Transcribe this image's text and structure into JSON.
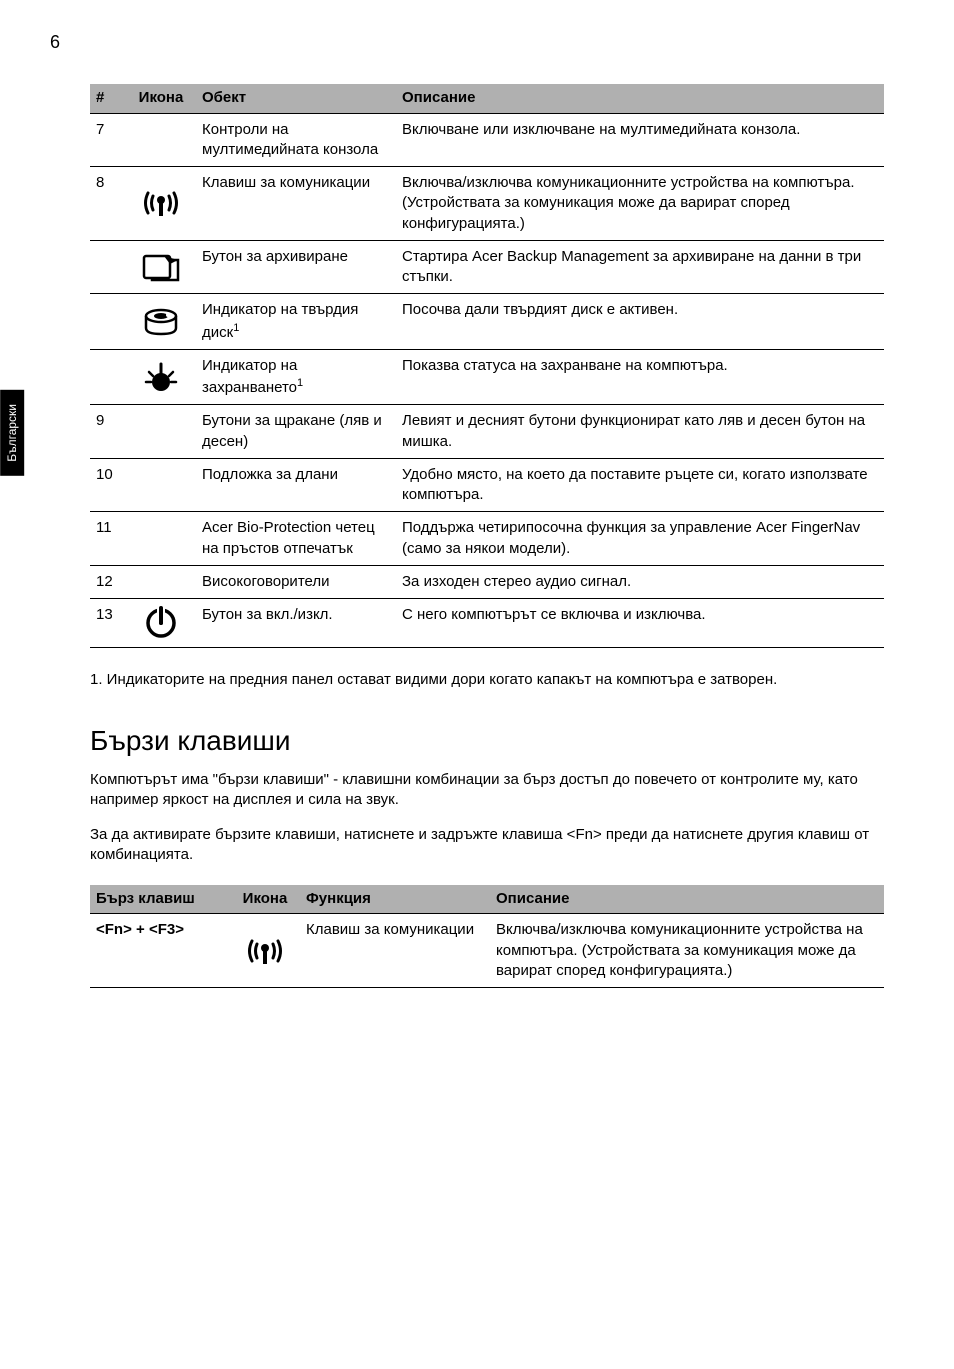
{
  "page_number": "6",
  "side_tab": "Български",
  "table1": {
    "headers": {
      "num": "#",
      "icon": "Икона",
      "obj": "Обект",
      "desc": "Описание"
    },
    "rows": [
      {
        "num": "7",
        "icon": null,
        "obj": "Контроли на мултимедийната конзола",
        "desc": "Включване или изключване на мултимедийната конзола.",
        "rule": true
      },
      {
        "num": "8",
        "icon": "comm",
        "obj": "Клавиш за комуникации",
        "desc": "Включва/изключва комуникационните устройства на компютъра. (Устройствата за комуникация може да варират според конфигурацията.)",
        "rule": true
      },
      {
        "num": "",
        "icon": "backup",
        "obj": "Бутон за архивиране",
        "desc": "Стартира Acer Backup Management за архивиране на данни в три стъпки.",
        "rule": true
      },
      {
        "num": "",
        "icon": "hdd",
        "obj_html": "Индикатор на твърдия диск<sup>1</sup>",
        "desc": "Посочва дали твърдият диск е активен.",
        "rule": true
      },
      {
        "num": "",
        "icon": "power",
        "obj_html": "Индикатор на захранването<sup>1</sup>",
        "desc": "Показва статуса на захранване на компютъра.",
        "rule": true
      },
      {
        "num": "9",
        "icon": null,
        "obj": "Бутони за щракане (ляв и десен)",
        "desc": "Левият и десният бутони функционират като ляв и десен бутон на мишка.",
        "rule": true
      },
      {
        "num": "10",
        "icon": null,
        "obj": "Подложка за длани",
        "desc": "Удобно място, на което да поставите ръцете си, когато използвате компютъра.",
        "rule": true
      },
      {
        "num": "11",
        "icon": null,
        "obj": "Acer Bio-Protection четец на пръстов отпечатък",
        "desc": "Поддържа четирипосочна функция за управление Acer FingerNav (само за някои модели).",
        "rule": true
      },
      {
        "num": "12",
        "icon": null,
        "obj": "Високоговорители",
        "desc": "За изходен стерео аудио сигнал.",
        "rule": true
      },
      {
        "num": "13",
        "icon": "pwrbtn",
        "obj": "Бутон за вкл./изкл.",
        "desc": "С него компютърът се включва и изключва.",
        "rule": true,
        "last": true
      }
    ]
  },
  "footnote": "1. Индикаторите на предния панел остават видими дори когато капакът на компютъра е затворен.",
  "section_title": "Бързи клавиши",
  "para1": "Компютърът има \"бързи клавиши\" - клавишни комбинации за бърз достъп до повечето от контролите му, като например яркост на дисплея и сила на звук.",
  "para2": "За да активирате бързите клавиши, натиснете и задръжте клавиша <Fn> преди да натиснете другия клавиш от комбинацията.",
  "table2": {
    "headers": {
      "hot": "Бърз клавиш",
      "icon": "Икона",
      "func": "Функция",
      "desc": "Описание"
    },
    "rows": [
      {
        "hot": "<Fn> + <F3>",
        "icon": "comm",
        "func": "Клавиш за комуникации",
        "desc": "Включва/изключва комуникационните устройства на компютъра. (Устройствата за комуникация може да варират според конфигурацията.)",
        "last": true
      }
    ]
  },
  "icons": {
    "comm": "<svg class='icon-svg' width='40' height='34' viewBox='0 0 40 34'><g fill='none' stroke='#000' stroke-width='3' stroke-linecap='round'><path d='M7 7 Q2 17 7 27'/><path d='M12 10 Q9 17 12 24'/><path d='M33 7 Q38 17 33 27'/><path d='M28 10 Q31 17 28 24'/></g><circle cx='20' cy='14' r='4' fill='#000'/><rect x='18' y='16' width='4' height='14' fill='#000'/></svg>",
    "backup": "<svg class='icon-svg' width='42' height='34' viewBox='0 0 42 34'><g fill='none' stroke='#000' stroke-width='2.5'><rect x='4' y='6' width='26' height='22' rx='2'/><path d='M30 10 L38 10 L38 30 L12 30 L12 28'/><path d='M24 6 L30 14 L38 10' fill='#000' stroke='none'/></g></svg>",
    "hdd": "<svg class='icon-svg' width='38' height='32' viewBox='0 0 38 32'><ellipse cx='19' cy='10' rx='15' ry='6' fill='none' stroke='#000' stroke-width='2.5'/><path d='M4 10 L4 22 Q4 28 19 28 Q34 28 34 22 L34 10' fill='none' stroke='#000' stroke-width='2.5'/><ellipse cx='19' cy='10' rx='7' ry='3' fill='#000'/><circle cx='26' cy='9' r='2' fill='#fff'/></svg>",
    "power": "<svg class='icon-svg' width='36' height='34' viewBox='0 0 36 34'><circle cx='18' cy='22' r='9' fill='#000'/><path d='M18 4 L18 14' stroke='#000' stroke-width='3' stroke-linecap='round'/><path d='M6 12 L10 16' stroke='#000' stroke-width='2.5' stroke-linecap='round'/><path d='M30 12 L26 16' stroke='#000' stroke-width='2.5' stroke-linecap='round'/><path d='M3 22 L8 22' stroke='#000' stroke-width='2.5' stroke-linecap='round'/><path d='M33 22 L28 22' stroke='#000' stroke-width='2.5' stroke-linecap='round'/></svg>",
    "pwrbtn": "<svg class='icon-svg' width='36' height='36' viewBox='0 0 36 36'><circle cx='18' cy='18' r='13' fill='none' stroke='#000' stroke-width='3.5'/><path d='M18 5 L18 18' stroke='#000' stroke-width='4' stroke-linecap='round'/><rect x='14' y='2' width='8' height='8' fill='#fff'/><path d='M18 3 L18 18' stroke='#000' stroke-width='4' stroke-linecap='round'/></svg>"
  }
}
